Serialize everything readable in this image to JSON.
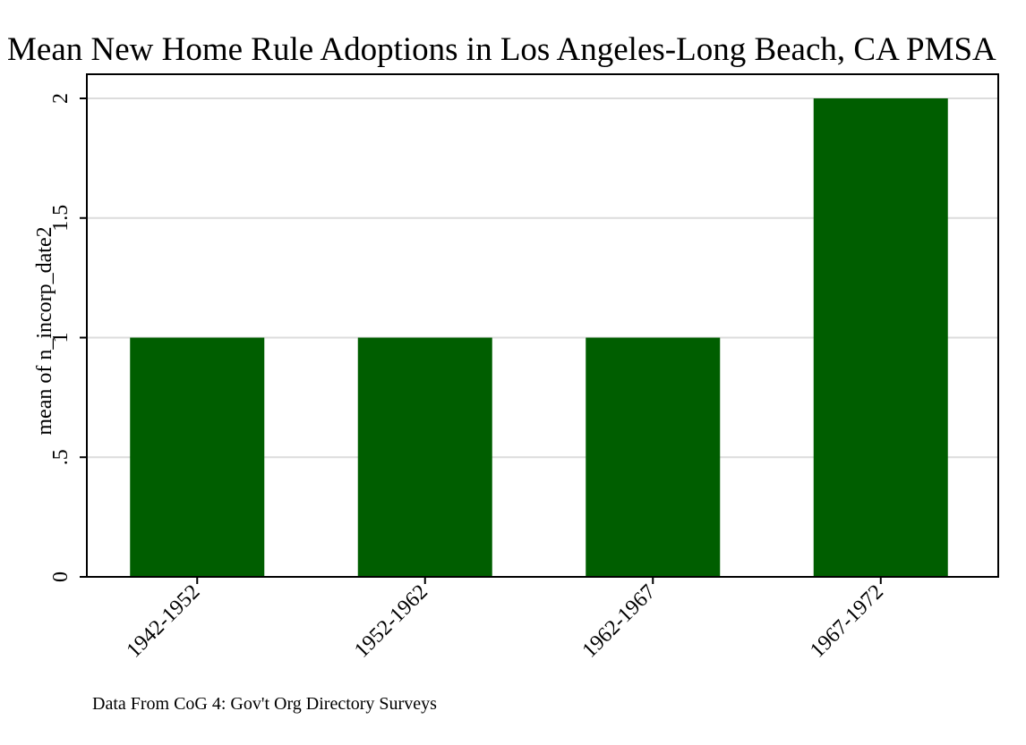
{
  "chart_data": {
    "type": "bar",
    "title": "Mean New Home Rule Adoptions in Los Angeles-Long Beach, CA PMSA",
    "xlabel": "",
    "ylabel": "mean of n_incorp_date2",
    "categories": [
      "1942-1952",
      "1952-1962",
      "1962-1967",
      "1967-1972"
    ],
    "values": [
      1,
      1,
      1,
      2
    ],
    "ylim": [
      0,
      2
    ],
    "yticks": [
      0,
      0.5,
      1,
      1.5,
      2
    ],
    "ytick_labels": [
      "0",
      ".5",
      "1",
      "1.5",
      "2"
    ],
    "grid": true,
    "legend": "none",
    "note": "Data From CoG 4: Gov't Org Directory Surveys",
    "colors": {
      "bar": "#005e00",
      "grid": "#dcdcdc",
      "axis": "#000000",
      "background": "#ffffff"
    }
  }
}
